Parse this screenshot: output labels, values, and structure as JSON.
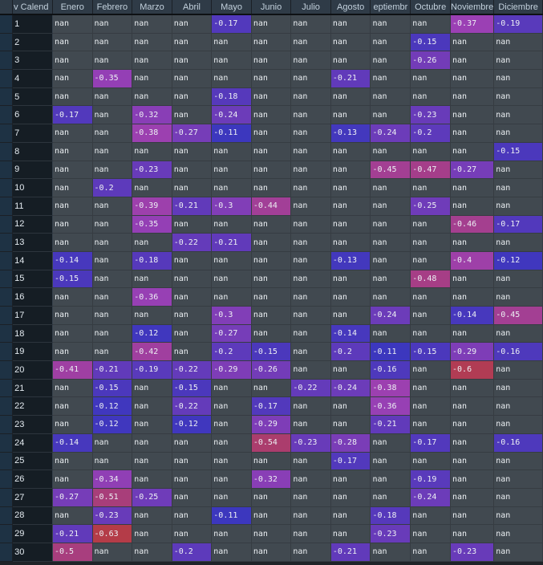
{
  "dataframe": {
    "index_header": "v Calend",
    "columns": [
      "Enero",
      "Febrero",
      "Marzo",
      "Abril",
      "Mayo",
      "Junio",
      "Julio",
      "Agosto",
      "eptiembr",
      "Octubre",
      "Noviembre",
      "Diciembre"
    ],
    "rows": [
      {
        "index": "1",
        "cells": [
          "nan",
          "nan",
          "nan",
          "nan",
          "-0.17",
          "nan",
          "nan",
          "nan",
          "nan",
          "nan",
          "-0.37",
          "-0.19"
        ]
      },
      {
        "index": "2",
        "cells": [
          "nan",
          "nan",
          "nan",
          "nan",
          "nan",
          "nan",
          "nan",
          "nan",
          "nan",
          "-0.15",
          "nan",
          "nan"
        ]
      },
      {
        "index": "3",
        "cells": [
          "nan",
          "nan",
          "nan",
          "nan",
          "nan",
          "nan",
          "nan",
          "nan",
          "nan",
          "-0.26",
          "nan",
          "nan"
        ]
      },
      {
        "index": "4",
        "cells": [
          "nan",
          "-0.35",
          "nan",
          "nan",
          "nan",
          "nan",
          "nan",
          "-0.21",
          "nan",
          "nan",
          "nan",
          "nan"
        ]
      },
      {
        "index": "5",
        "cells": [
          "nan",
          "nan",
          "nan",
          "nan",
          "-0.18",
          "nan",
          "nan",
          "nan",
          "nan",
          "nan",
          "nan",
          "nan"
        ]
      },
      {
        "index": "6",
        "cells": [
          "-0.17",
          "nan",
          "-0.32",
          "nan",
          "-0.24",
          "nan",
          "nan",
          "nan",
          "nan",
          "-0.23",
          "nan",
          "nan"
        ]
      },
      {
        "index": "7",
        "cells": [
          "nan",
          "nan",
          "-0.38",
          "-0.27",
          "-0.11",
          "nan",
          "nan",
          "-0.13",
          "-0.24",
          "-0.2",
          "nan",
          "nan"
        ]
      },
      {
        "index": "8",
        "cells": [
          "nan",
          "nan",
          "nan",
          "nan",
          "nan",
          "nan",
          "nan",
          "nan",
          "nan",
          "nan",
          "nan",
          "-0.15"
        ]
      },
      {
        "index": "9",
        "cells": [
          "nan",
          "nan",
          "-0.23",
          "nan",
          "nan",
          "nan",
          "nan",
          "nan",
          "-0.45",
          "-0.47",
          "-0.27",
          "nan"
        ]
      },
      {
        "index": "10",
        "cells": [
          "nan",
          "-0.2",
          "nan",
          "nan",
          "nan",
          "nan",
          "nan",
          "nan",
          "nan",
          "nan",
          "nan",
          "nan"
        ]
      },
      {
        "index": "11",
        "cells": [
          "nan",
          "nan",
          "-0.39",
          "-0.21",
          "-0.3",
          "-0.44",
          "nan",
          "nan",
          "nan",
          "-0.25",
          "nan",
          "nan"
        ]
      },
      {
        "index": "12",
        "cells": [
          "nan",
          "nan",
          "-0.35",
          "nan",
          "nan",
          "nan",
          "nan",
          "nan",
          "nan",
          "nan",
          "-0.46",
          "-0.17"
        ]
      },
      {
        "index": "13",
        "cells": [
          "nan",
          "nan",
          "nan",
          "-0.22",
          "-0.21",
          "nan",
          "nan",
          "nan",
          "nan",
          "nan",
          "nan",
          "nan"
        ]
      },
      {
        "index": "14",
        "cells": [
          "-0.14",
          "nan",
          "-0.18",
          "nan",
          "nan",
          "nan",
          "nan",
          "-0.13",
          "nan",
          "nan",
          "-0.4",
          "-0.12"
        ]
      },
      {
        "index": "15",
        "cells": [
          "-0.15",
          "nan",
          "nan",
          "nan",
          "nan",
          "nan",
          "nan",
          "nan",
          "nan",
          "-0.48",
          "nan",
          "nan"
        ]
      },
      {
        "index": "16",
        "cells": [
          "nan",
          "nan",
          "-0.36",
          "nan",
          "nan",
          "nan",
          "nan",
          "nan",
          "nan",
          "nan",
          "nan",
          "nan"
        ]
      },
      {
        "index": "17",
        "cells": [
          "nan",
          "nan",
          "nan",
          "nan",
          "-0.3",
          "nan",
          "nan",
          "nan",
          "-0.24",
          "nan",
          "-0.14",
          "-0.45"
        ]
      },
      {
        "index": "18",
        "cells": [
          "nan",
          "nan",
          "-0.12",
          "nan",
          "-0.27",
          "nan",
          "nan",
          "-0.14",
          "nan",
          "nan",
          "nan",
          "nan"
        ]
      },
      {
        "index": "19",
        "cells": [
          "nan",
          "nan",
          "-0.42",
          "nan",
          "-0.2",
          "-0.15",
          "nan",
          "-0.2",
          "-0.11",
          "-0.15",
          "-0.29",
          "-0.16"
        ]
      },
      {
        "index": "20",
        "cells": [
          "-0.41",
          "-0.21",
          "-0.19",
          "-0.22",
          "-0.29",
          "-0.26",
          "nan",
          "nan",
          "-0.16",
          "nan",
          "-0.6",
          "nan"
        ]
      },
      {
        "index": "21",
        "cells": [
          "nan",
          "-0.15",
          "nan",
          "-0.15",
          "nan",
          "nan",
          "-0.22",
          "-0.24",
          "-0.38",
          "nan",
          "nan",
          "nan"
        ]
      },
      {
        "index": "22",
        "cells": [
          "nan",
          "-0.12",
          "nan",
          "-0.22",
          "nan",
          "-0.17",
          "nan",
          "nan",
          "-0.36",
          "nan",
          "nan",
          "nan"
        ]
      },
      {
        "index": "23",
        "cells": [
          "nan",
          "-0.12",
          "nan",
          "-0.12",
          "nan",
          "-0.29",
          "nan",
          "nan",
          "-0.21",
          "nan",
          "nan",
          "nan"
        ]
      },
      {
        "index": "24",
        "cells": [
          "-0.14",
          "nan",
          "nan",
          "nan",
          "nan",
          "-0.54",
          "-0.23",
          "-0.28",
          "nan",
          "-0.17",
          "nan",
          "-0.16"
        ]
      },
      {
        "index": "25",
        "cells": [
          "nan",
          "nan",
          "nan",
          "nan",
          "nan",
          "nan",
          "nan",
          "-0.17",
          "nan",
          "nan",
          "nan",
          "nan"
        ]
      },
      {
        "index": "26",
        "cells": [
          "nan",
          "-0.34",
          "nan",
          "nan",
          "nan",
          "-0.32",
          "nan",
          "nan",
          "nan",
          "-0.19",
          "nan",
          "nan"
        ]
      },
      {
        "index": "27",
        "cells": [
          "-0.27",
          "-0.51",
          "-0.25",
          "nan",
          "nan",
          "nan",
          "nan",
          "nan",
          "nan",
          "-0.24",
          "nan",
          "nan"
        ]
      },
      {
        "index": "28",
        "cells": [
          "nan",
          "-0.23",
          "nan",
          "nan",
          "-0.11",
          "nan",
          "nan",
          "nan",
          "-0.18",
          "nan",
          "nan",
          "nan"
        ]
      },
      {
        "index": "29",
        "cells": [
          "-0.21",
          "-0.63",
          "nan",
          "nan",
          "nan",
          "nan",
          "nan",
          "nan",
          "-0.23",
          "nan",
          "nan",
          "nan"
        ]
      },
      {
        "index": "30",
        "cells": [
          "-0.5",
          "nan",
          "nan",
          "-0.2",
          "nan",
          "nan",
          "nan",
          "-0.21",
          "nan",
          "nan",
          "-0.23",
          "nan"
        ]
      }
    ]
  },
  "colors": {
    "nan_background": "#414950",
    "cell_text": "#ecf0f3",
    "index_background": "#151d24",
    "index_text": "#e4ebf1",
    "header_background": "#2f3b47",
    "header_text": "#c3d1dd",
    "gradient_low_value": "#b43c48",
    "gradient_mid_value": "#9b40b4",
    "gradient_high_value": "#3c37be"
  },
  "color_scale": {
    "min": -0.63,
    "max": -0.11
  }
}
